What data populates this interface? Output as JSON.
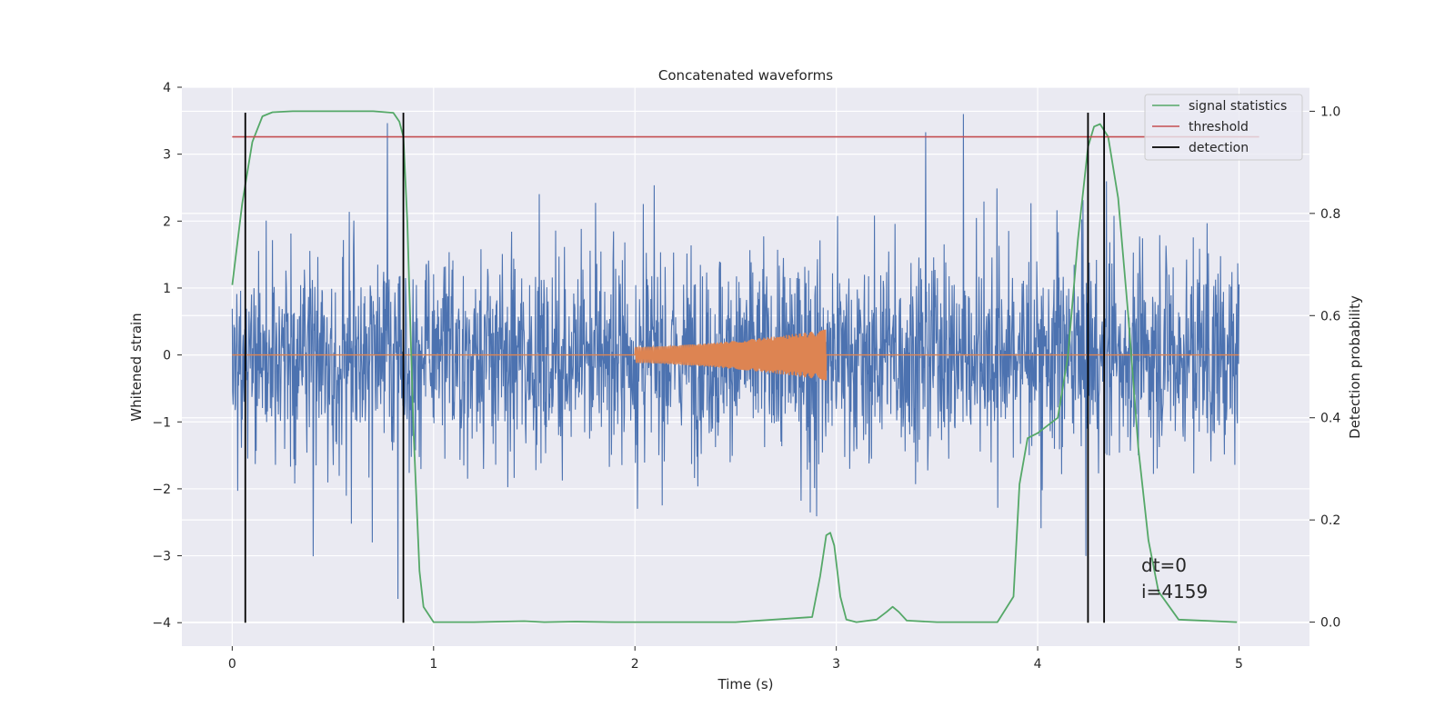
{
  "chart_data": {
    "type": "line",
    "title": "Concatenated waveforms",
    "xlabel": "Time (s)",
    "ylabel": "Whitened strain",
    "y2label": "Detection probability",
    "xlim": [
      -0.25,
      5.35
    ],
    "ylim": [
      -4.35,
      4.0
    ],
    "y2lim": [
      -0.047,
      1.047
    ],
    "x_ticks": [
      0,
      1,
      2,
      3,
      4,
      5
    ],
    "x_tick_labels": [
      "0",
      "1",
      "2",
      "3",
      "4",
      "5"
    ],
    "y_ticks": [
      -4,
      -3,
      -2,
      -1,
      0,
      1,
      2,
      3,
      4
    ],
    "y_tick_labels": [
      "−4",
      "−3",
      "−2",
      "−1",
      "0",
      "1",
      "2",
      "3",
      "4"
    ],
    "y2_ticks": [
      0.0,
      0.2,
      0.4,
      0.6,
      0.8,
      1.0
    ],
    "y2_tick_labels": [
      "0.0",
      "0.2",
      "0.4",
      "0.6",
      "0.8",
      "1.0"
    ],
    "grid": true,
    "legend_position": "top-right",
    "colors": {
      "background": "#eaeaf2",
      "grid": "#ffffff",
      "strain": "#4c72b0",
      "template": "#dd8452",
      "signal_statistics": "#55a868",
      "threshold": "#c44e52",
      "detection": "#000000"
    },
    "series": [
      {
        "name": "",
        "axis": "left",
        "x_range": [
          0,
          5
        ],
        "description_values": "whitened strain noise, roughly within [-4, 3.6]"
      },
      {
        "name": "",
        "axis": "left",
        "x_range": [
          2.0,
          2.95
        ],
        "amplitude_start": 0.12,
        "amplitude_end": 0.38
      },
      {
        "name": "signal statistics",
        "axis": "right",
        "x": [
          0.0,
          0.05,
          0.1,
          0.15,
          0.2,
          0.3,
          0.5,
          0.7,
          0.8,
          0.83,
          0.85,
          0.87,
          0.9,
          0.93,
          0.95,
          1.0,
          1.2,
          1.45,
          1.55,
          1.7,
          1.9,
          2.5,
          2.88,
          2.92,
          2.95,
          2.97,
          2.99,
          3.02,
          3.05,
          3.1,
          3.2,
          3.25,
          3.28,
          3.31,
          3.35,
          3.5,
          3.8,
          3.88,
          3.91,
          3.95,
          4.0,
          4.1,
          4.15,
          4.2,
          4.25,
          4.28,
          4.31,
          4.35,
          4.4,
          4.45,
          4.5,
          4.55,
          4.6,
          4.7,
          4.99
        ],
        "values": [
          0.66,
          0.82,
          0.94,
          0.99,
          0.998,
          1.0,
          1.0,
          1.0,
          0.997,
          0.98,
          0.95,
          0.78,
          0.38,
          0.1,
          0.03,
          0.0,
          0.0,
          0.002,
          0.0,
          0.001,
          0.0,
          0.0,
          0.01,
          0.09,
          0.17,
          0.175,
          0.15,
          0.05,
          0.005,
          0.0,
          0.005,
          0.02,
          0.03,
          0.02,
          0.003,
          0.0,
          0.0,
          0.05,
          0.27,
          0.36,
          0.37,
          0.4,
          0.52,
          0.75,
          0.93,
          0.97,
          0.975,
          0.95,
          0.83,
          0.6,
          0.34,
          0.16,
          0.06,
          0.005,
          0.0
        ]
      },
      {
        "name": "threshold",
        "axis": "right",
        "x": [
          0,
          5.1
        ],
        "values": [
          0.95,
          0.95
        ]
      },
      {
        "name": "detection",
        "axis": "left",
        "type": "vlines",
        "x": [
          0.065,
          0.85,
          4.25,
          4.33
        ],
        "ymin": -4.0,
        "ymax": 3.62
      }
    ],
    "annotations": [
      "dt=0",
      "i=4159"
    ]
  }
}
